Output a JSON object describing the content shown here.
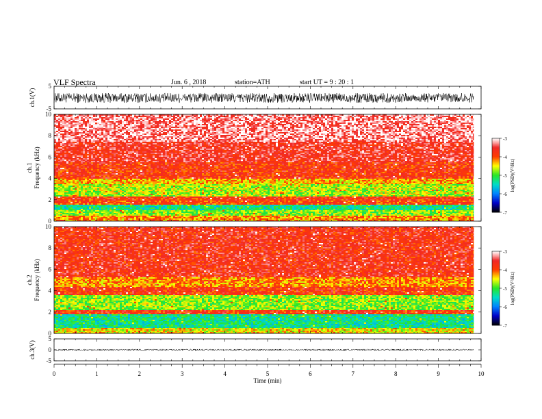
{
  "header": {
    "title": "VLF  Spectra",
    "date": "Jun. 6  , 2018",
    "station": "station=ATH",
    "start_ut": "start  UT  =   9  : 20 : 1"
  },
  "chart_data": [
    {
      "type": "line",
      "panel": "ch1-waveform",
      "ylabel": "ch.1(V)",
      "ylim": [
        -5,
        5
      ],
      "yticks": [
        "5",
        "-5"
      ],
      "xlim": [
        0,
        10
      ],
      "data_end": 9.83,
      "amplitude_range": [
        -2.3,
        2.0
      ]
    },
    {
      "type": "heatmap",
      "panel": "ch1-spectrogram",
      "ylabel_top": "ch.1",
      "ylabel": "Frequency  (kHz)",
      "ylim": [
        0,
        10
      ],
      "yticks": [
        "0",
        "2",
        "4",
        "6",
        "8",
        "10"
      ],
      "xlim": [
        0,
        10
      ],
      "data_end": 9.83,
      "bands": [
        {
          "from": 0,
          "to": 0.5,
          "level": -4.2
        },
        {
          "from": 0.5,
          "to": 1.0,
          "level": -4.8
        },
        {
          "from": 1.0,
          "to": 1.6,
          "level": -5.3
        },
        {
          "from": 1.6,
          "to": 1.9,
          "level": -3.9
        },
        {
          "from": 1.9,
          "to": 2.3,
          "level": -3.8
        },
        {
          "from": 2.3,
          "to": 3.4,
          "level": -4.7
        },
        {
          "from": 3.4,
          "to": 4.0,
          "level": -4.3
        },
        {
          "from": 4.0,
          "to": 5.5,
          "level": -3.8
        },
        {
          "from": 5.5,
          "to": 7.5,
          "level": -3.6
        },
        {
          "from": 7.5,
          "to": 10,
          "level": -3.3
        }
      ]
    },
    {
      "type": "heatmap",
      "panel": "ch2-spectrogram",
      "ylabel_top": "ch.2",
      "ylabel": "Frequency  (kHz)",
      "ylim": [
        0,
        10
      ],
      "yticks": [
        "0",
        "2",
        "4",
        "6",
        "8",
        "10"
      ],
      "xlim": [
        0,
        10
      ],
      "data_end": 9.83,
      "bands": [
        {
          "from": 0,
          "to": 0.5,
          "level": -4.5
        },
        {
          "from": 0.5,
          "to": 1.8,
          "level": -5.3
        },
        {
          "from": 1.8,
          "to": 2.2,
          "level": -3.8
        },
        {
          "from": 2.2,
          "to": 3.6,
          "level": -4.8
        },
        {
          "from": 3.6,
          "to": 4.3,
          "level": -3.8
        },
        {
          "from": 4.3,
          "to": 5.3,
          "level": -4.2
        },
        {
          "from": 5.3,
          "to": 10,
          "level": -3.7
        }
      ]
    },
    {
      "type": "line",
      "panel": "ch3-waveform",
      "ylabel": "ch.3(V)",
      "xlabel": "Time  (min)",
      "ylim": [
        -5,
        5
      ],
      "yticks": [
        "5",
        "0",
        "-5"
      ],
      "xlim": [
        0,
        10
      ],
      "xticks": [
        "0",
        "1",
        "2",
        "3",
        "4",
        "5",
        "6",
        "7",
        "8",
        "9",
        "10"
      ],
      "data_end": 9.83,
      "level": 0,
      "amplitude_range": [
        -0.35,
        0.35
      ]
    }
  ],
  "colorbars": [
    {
      "label": "log(PSD)(V²/Hz)",
      "ticks": [
        "-3",
        "-4",
        "-5",
        "-6",
        "-7"
      ],
      "range": [
        -7,
        -3
      ]
    },
    {
      "label": "log(PSD)(V²/Hz)",
      "ticks": [
        "-3",
        "-4",
        "-5",
        "-6",
        "-7"
      ],
      "range": [
        -7,
        -3
      ]
    }
  ]
}
